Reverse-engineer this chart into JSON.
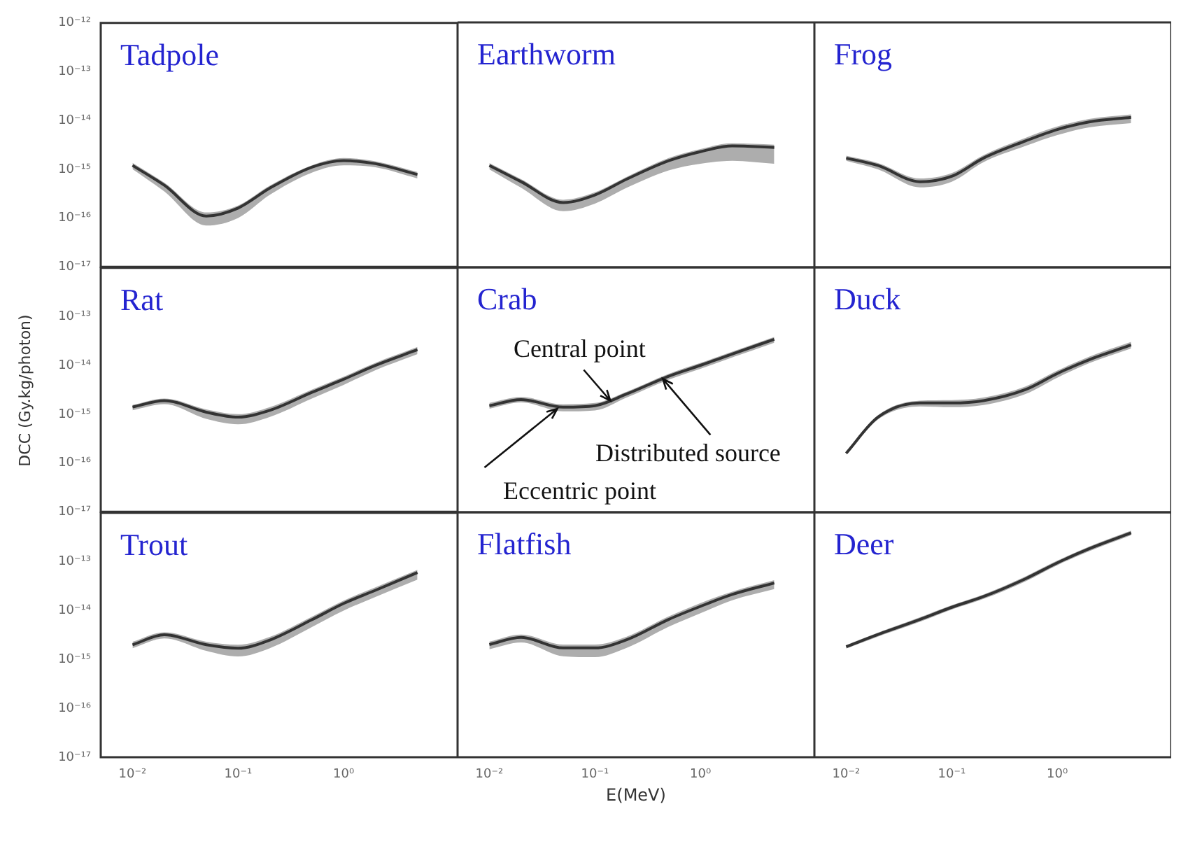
{
  "chart_data": [
    {
      "type": "line",
      "title": "Tadpole",
      "log": "xy",
      "tick_labels": "y",
      "x": [
        0.01,
        0.02,
        0.05,
        0.1,
        0.2,
        0.5,
        1,
        2,
        5
      ],
      "xlim": [
        0.005,
        12
      ],
      "ylim": [
        1e-17,
        1e-12
      ],
      "xticks": [
        {
          "value": 0.01,
          "label": null
        },
        {
          "value": 0.1,
          "label": null
        },
        {
          "value": 1,
          "label": null
        }
      ],
      "yticks": [
        {
          "value": 1e-17,
          "label": "10⁻¹⁷"
        },
        {
          "value": 1e-16,
          "label": "10⁻¹⁶"
        },
        {
          "value": 1e-15,
          "label": "10⁻¹⁵"
        },
        {
          "value": 1e-14,
          "label": "10⁻¹⁴"
        },
        {
          "value": 1e-13,
          "label": "10⁻¹³"
        },
        {
          "value": 1e-12,
          "label": "10⁻¹²"
        }
      ],
      "series": [
        {
          "color": "#333333",
          "values": [
            1.2e-15,
            4.7e-16,
            1.1e-16,
            1.6e-16,
            4.1e-16,
            1.1e-15,
            1.5e-15,
            1.3e-15,
            7.8e-16
          ],
          "lower": [
            1e-15,
            3.5e-16,
            7e-17,
            1e-16,
            3e-16,
            8.5e-16,
            1.2e-15,
            1.1e-15,
            6.5e-16
          ],
          "upper": [
            1.35e-15,
            5.3e-16,
            1.3e-16,
            1.8e-16,
            4.6e-16,
            1.2e-15,
            1.7e-15,
            1.45e-15,
            8.8e-16
          ]
        }
      ]
    },
    {
      "type": "line",
      "title": "Earthworm",
      "log": "xy",
      "tick_labels": false,
      "x": [
        0.01,
        0.02,
        0.05,
        0.1,
        0.2,
        0.5,
        1,
        2,
        5
      ],
      "xlim": [
        0.005,
        12
      ],
      "ylim": [
        1e-17,
        1e-12
      ],
      "xticks": [
        {
          "value": 0.01,
          "label": null
        },
        {
          "value": 0.1,
          "label": null
        },
        {
          "value": 1,
          "label": null
        }
      ],
      "yticks": [
        {
          "value": 1e-17,
          "label": null
        },
        {
          "value": 1e-16,
          "label": null
        },
        {
          "value": 1e-15,
          "label": null
        },
        {
          "value": 1e-14,
          "label": null
        },
        {
          "value": 1e-13,
          "label": null
        },
        {
          "value": 1e-12,
          "label": null
        }
      ],
      "series": [
        {
          "color": "#333333",
          "values": [
            1.2e-15,
            5.6e-16,
            2.1e-16,
            3e-16,
            6.3e-16,
            1.5e-15,
            2.3e-15,
            3e-15,
            2.8e-15
          ],
          "lower": [
            1e-15,
            4.2e-16,
            1.4e-16,
            2e-16,
            4.2e-16,
            9.5e-16,
            1.3e-15,
            1.5e-15,
            1.3e-15
          ],
          "upper": [
            1.35e-15,
            6.3e-16,
            2.4e-16,
            3.4e-16,
            7e-16,
            1.7e-15,
            2.6e-15,
            3.4e-15,
            3.2e-15
          ]
        }
      ]
    },
    {
      "type": "line",
      "title": "Frog",
      "log": "xy",
      "tick_labels": false,
      "x": [
        0.01,
        0.02,
        0.05,
        0.1,
        0.2,
        0.5,
        1,
        2,
        5
      ],
      "xlim": [
        0.005,
        12
      ],
      "ylim": [
        1e-17,
        1e-12
      ],
      "xticks": [
        {
          "value": 0.01,
          "label": null
        },
        {
          "value": 0.1,
          "label": null
        },
        {
          "value": 1,
          "label": null
        }
      ],
      "yticks": [
        {
          "value": 1e-17,
          "label": null
        },
        {
          "value": 1e-16,
          "label": null
        },
        {
          "value": 1e-15,
          "label": null
        },
        {
          "value": 1e-14,
          "label": null
        },
        {
          "value": 1e-13,
          "label": null
        },
        {
          "value": 1e-12,
          "label": null
        }
      ],
      "series": [
        {
          "color": "#333333",
          "values": [
            1.7e-15,
            1.2e-15,
            5.6e-16,
            7.2e-16,
            1.7e-15,
            3.8e-15,
            6.5e-15,
            9.3e-15,
            1.15e-14
          ],
          "lower": [
            1.5e-15,
            1e-15,
            4.3e-16,
            5.6e-16,
            1.4e-15,
            3e-15,
            5e-15,
            7.2e-15,
            8.8e-15
          ],
          "upper": [
            1.9e-15,
            1.35e-15,
            6.5e-16,
            8.4e-16,
            1.95e-15,
            4.4e-15,
            7.5e-15,
            1.07e-14,
            1.32e-14
          ]
        }
      ]
    },
    {
      "type": "line",
      "title": "Rat",
      "ylabel": "DCC (Gy.kg/photon)",
      "log": "xy",
      "tick_labels": "y",
      "x": [
        0.01,
        0.02,
        0.05,
        0.1,
        0.2,
        0.5,
        1,
        2,
        5
      ],
      "xlim": [
        0.005,
        12
      ],
      "ylim": [
        1e-17,
        1e-12
      ],
      "xticks": [
        {
          "value": 0.01,
          "label": null
        },
        {
          "value": 0.1,
          "label": null
        },
        {
          "value": 1,
          "label": null
        }
      ],
      "yticks": [
        {
          "value": 1e-17,
          "label": "10⁻¹⁷"
        },
        {
          "value": 1e-16,
          "label": "10⁻¹⁶"
        },
        {
          "value": 1e-15,
          "label": "10⁻¹⁵"
        },
        {
          "value": 1e-14,
          "label": "10⁻¹⁴"
        },
        {
          "value": 1e-13,
          "label": "10⁻¹³"
        },
        {
          "value": 1e-12,
          "label": null
        }
      ],
      "series": [
        {
          "color": "#333333",
          "values": [
            1.4e-15,
            1.9e-15,
            1.1e-15,
            8.7e-16,
            1.2e-15,
            2.8e-15,
            5.2e-15,
            1e-14,
            2.1e-14
          ],
          "lower": [
            1.2e-15,
            1.6e-15,
            8e-16,
            6.2e-16,
            8.8e-16,
            2.1e-15,
            4e-15,
            8e-15,
            1.7e-14
          ],
          "upper": [
            1.55e-15,
            2.1e-15,
            1.25e-15,
            1e-15,
            1.4e-15,
            3.2e-15,
            5.9e-15,
            1.13e-14,
            2.4e-14
          ]
        }
      ]
    },
    {
      "type": "line",
      "title": "Crab",
      "log": "xy",
      "tick_labels": false,
      "x": [
        0.01,
        0.02,
        0.05,
        0.1,
        0.2,
        0.5,
        1,
        2,
        5
      ],
      "xlim": [
        0.005,
        12
      ],
      "ylim": [
        1e-17,
        1e-12
      ],
      "xticks": [
        {
          "value": 0.01,
          "label": null
        },
        {
          "value": 0.1,
          "label": null
        },
        {
          "value": 1,
          "label": null
        }
      ],
      "yticks": [
        {
          "value": 1e-17,
          "label": null
        },
        {
          "value": 1e-16,
          "label": null
        },
        {
          "value": 1e-15,
          "label": null
        },
        {
          "value": 1e-14,
          "label": null
        },
        {
          "value": 1e-13,
          "label": null
        },
        {
          "value": 1e-12,
          "label": null
        }
      ],
      "annotations": [
        {
          "text": "Central point",
          "x": 0.14,
          "y": 1.9e-15
        },
        {
          "text": "Distributed source",
          "x": 0.44,
          "y": 5.3e-15
        },
        {
          "text": "Eccentric point",
          "x": 0.044,
          "y": 1.3e-15
        }
      ],
      "series": [
        {
          "color": "#333333",
          "values": [
            1.5e-15,
            2e-15,
            1.4e-15,
            1.5e-15,
            2.6e-15,
            6e-15,
            1e-14,
            1.7e-14,
            3.4e-14
          ],
          "lower": [
            1.3e-15,
            1.75e-15,
            1.15e-15,
            1.2e-15,
            2.2e-15,
            5.1e-15,
            8.5e-15,
            1.45e-14,
            2.9e-14
          ],
          "upper": [
            1.7e-15,
            2.25e-15,
            1.6e-15,
            1.7e-15,
            2.9e-15,
            6.7e-15,
            1.12e-14,
            1.9e-14,
            3.8e-14
          ]
        }
      ]
    },
    {
      "type": "line",
      "title": "Duck",
      "log": "xy",
      "tick_labels": false,
      "x": [
        0.01,
        0.02,
        0.05,
        0.1,
        0.2,
        0.5,
        1,
        2,
        5
      ],
      "xlim": [
        0.005,
        12
      ],
      "ylim": [
        1e-17,
        1e-12
      ],
      "xticks": [
        {
          "value": 0.01,
          "label": null
        },
        {
          "value": 0.1,
          "label": null
        },
        {
          "value": 1,
          "label": null
        }
      ],
      "yticks": [
        {
          "value": 1e-17,
          "label": null
        },
        {
          "value": 1e-16,
          "label": null
        },
        {
          "value": 1e-15,
          "label": null
        },
        {
          "value": 1e-14,
          "label": null
        },
        {
          "value": 1e-13,
          "label": null
        },
        {
          "value": 1e-12,
          "label": null
        }
      ],
      "series": [
        {
          "color": "#333333",
          "values": [
            1.6e-16,
            8.7e-16,
            1.7e-15,
            1.7e-15,
            1.9e-15,
            3.2e-15,
            6.8e-15,
            1.3e-14,
            2.6e-14
          ],
          "lower": [
            1.5e-16,
            7.8e-16,
            1.45e-15,
            1.4e-15,
            1.55e-15,
            2.6e-15,
            5.6e-15,
            1.1e-14,
            2.2e-14
          ],
          "upper": [
            1.7e-16,
            9.6e-16,
            1.9e-15,
            1.95e-15,
            2.2e-15,
            3.7e-15,
            7.8e-15,
            1.5e-14,
            3e-14
          ]
        }
      ]
    },
    {
      "type": "line",
      "title": "Trout",
      "log": "xy",
      "x": [
        0.01,
        0.02,
        0.05,
        0.1,
        0.2,
        0.5,
        1,
        2,
        5
      ],
      "xlim": [
        0.005,
        12
      ],
      "ylim": [
        1e-17,
        1e-12
      ],
      "xticks": [
        {
          "value": 0.01,
          "label": "10⁻²"
        },
        {
          "value": 0.1,
          "label": "10⁻¹"
        },
        {
          "value": 1,
          "label": "10⁰"
        }
      ],
      "yticks": [
        {
          "value": 1e-17,
          "label": "10⁻¹⁷"
        },
        {
          "value": 1e-16,
          "label": "10⁻¹⁶"
        },
        {
          "value": 1e-15,
          "label": "10⁻¹⁵"
        },
        {
          "value": 1e-14,
          "label": "10⁻¹⁴"
        },
        {
          "value": 1e-13,
          "label": "10⁻¹³"
        },
        {
          "value": 1e-12,
          "label": null
        }
      ],
      "series": [
        {
          "color": "#333333",
          "values": [
            2e-15,
            3.2e-15,
            2e-15,
            1.7e-15,
            2.5e-15,
            6.5e-15,
            1.4e-14,
            2.6e-14,
            6e-14
          ],
          "lower": [
            1.7e-15,
            2.7e-15,
            1.5e-15,
            1.15e-15,
            1.7e-15,
            4.6e-15,
            1e-14,
            1.9e-14,
            4.3e-14
          ],
          "upper": [
            2.3e-15,
            3.6e-15,
            2.3e-15,
            2e-15,
            2.9e-15,
            7.5e-15,
            1.6e-14,
            3e-14,
            6.8e-14
          ]
        }
      ]
    },
    {
      "type": "line",
      "title": "Flatfish",
      "xlabel": "E(MeV)",
      "log": "xy",
      "tick_labels": "x",
      "x": [
        0.01,
        0.02,
        0.05,
        0.1,
        0.2,
        0.5,
        1,
        2,
        5
      ],
      "xlim": [
        0.005,
        12
      ],
      "ylim": [
        1e-17,
        1e-12
      ],
      "xticks": [
        {
          "value": 0.01,
          "label": "10⁻²"
        },
        {
          "value": 0.1,
          "label": "10⁻¹"
        },
        {
          "value": 1,
          "label": "10⁰"
        }
      ],
      "yticks": [
        {
          "value": 1e-17,
          "label": null
        },
        {
          "value": 1e-16,
          "label": null
        },
        {
          "value": 1e-15,
          "label": null
        },
        {
          "value": 1e-14,
          "label": null
        },
        {
          "value": 1e-13,
          "label": null
        },
        {
          "value": 1e-12,
          "label": null
        }
      ],
      "series": [
        {
          "color": "#333333",
          "values": [
            2e-15,
            2.8e-15,
            1.7e-15,
            1.7e-15,
            2.5e-15,
            6.5e-15,
            1.2e-14,
            2.1e-14,
            3.6e-14
          ],
          "lower": [
            1.6e-15,
            2.2e-15,
            1.15e-15,
            1.1e-15,
            1.7e-15,
            4.6e-15,
            8.7e-15,
            1.6e-14,
            2.7e-14
          ],
          "upper": [
            2.3e-15,
            3.2e-15,
            2e-15,
            2e-15,
            2.9e-15,
            7.5e-15,
            1.4e-14,
            2.4e-14,
            4.1e-14
          ]
        }
      ]
    },
    {
      "type": "line",
      "title": "Deer",
      "log": "xy",
      "tick_labels": "x",
      "x": [
        0.01,
        0.02,
        0.05,
        0.1,
        0.2,
        0.5,
        1,
        2,
        5
      ],
      "xlim": [
        0.005,
        12
      ],
      "ylim": [
        1e-17,
        1e-12
      ],
      "xticks": [
        {
          "value": 0.01,
          "label": "10⁻²"
        },
        {
          "value": 0.1,
          "label": "10⁻¹"
        },
        {
          "value": 1,
          "label": "10⁰"
        }
      ],
      "yticks": [
        {
          "value": 1e-17,
          "label": null
        },
        {
          "value": 1e-16,
          "label": null
        },
        {
          "value": 1e-15,
          "label": null
        },
        {
          "value": 1e-14,
          "label": null
        },
        {
          "value": 1e-13,
          "label": null
        },
        {
          "value": 1e-12,
          "label": null
        }
      ],
      "series": [
        {
          "color": "#333333",
          "values": [
            1.8e-15,
            3.2e-15,
            6.5e-15,
            1.15e-14,
            1.9e-14,
            4.4e-14,
            9.3e-14,
            1.8e-13,
            3.8e-13
          ],
          "lower": [
            1.65e-15,
            2.9e-15,
            5.8e-15,
            1.03e-14,
            1.7e-14,
            3.9e-14,
            8.3e-14,
            1.6e-13,
            3.4e-13
          ],
          "upper": [
            1.95e-15,
            3.5e-15,
            7.2e-15,
            1.27e-14,
            2.1e-14,
            4.9e-14,
            1.03e-13,
            2e-13,
            4.2e-13
          ]
        }
      ]
    }
  ]
}
